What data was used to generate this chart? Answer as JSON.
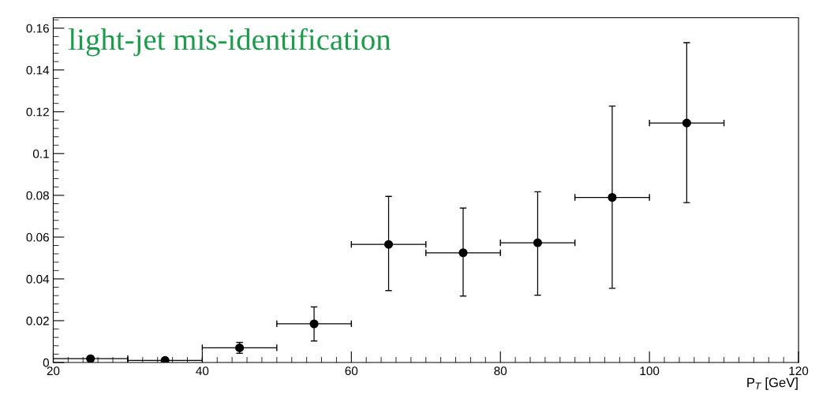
{
  "chart_data": {
    "type": "scatter",
    "xlabel": "P$_{T}$ [GeV]",
    "annotations": [
      "light-jet mis-identification"
    ],
    "x": [
      25,
      35,
      45,
      55,
      65,
      75,
      85,
      95,
      105
    ],
    "series": [
      {
        "color": "#000000",
        "values": [
          0.0018,
          0.001,
          0.007,
          0.0185,
          0.0565,
          0.0525,
          0.0573,
          0.079,
          0.1146
        ],
        "errors": [
          null,
          null,
          [
            0.0044,
            0.0096
          ],
          [
            0.0103,
            0.0266
          ],
          [
            0.0344,
            0.0795
          ],
          [
            0.0318,
            0.0739
          ],
          [
            0.0322,
            0.0817
          ],
          [
            0.0355,
            0.1227
          ],
          [
            0.0765,
            0.153
          ]
        ],
        "xerrors": [
          5,
          5,
          5,
          5,
          5,
          5,
          5,
          5,
          5
        ]
      }
    ],
    "xlim": [
      20,
      120
    ],
    "xticks": [
      20,
      40,
      60,
      80,
      100,
      120
    ],
    "ylim": [
      0,
      0.165
    ],
    "yticks": [
      0,
      0.02,
      0.04,
      0.06,
      0.08,
      0.1,
      0.12,
      0.14,
      0.16
    ],
    "marker": "circle",
    "grid": false,
    "legend": false
  }
}
